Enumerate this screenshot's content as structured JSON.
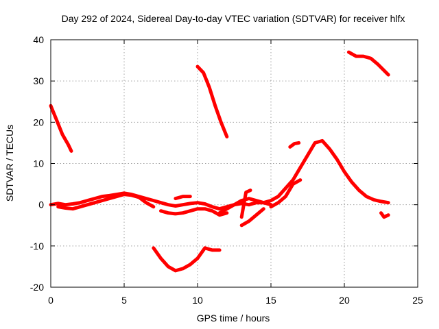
{
  "chart_data": {
    "type": "scatter",
    "title": "Day 292 of 2024, Sidereal Day-to-day VTEC variation (SDTVAR) for receiver hlfx",
    "xlabel": "GPS time / hours",
    "ylabel": "SDTVAR / TECUs",
    "xlim": [
      0,
      25
    ],
    "ylim": [
      -20,
      40
    ],
    "xticks": [
      0,
      5,
      10,
      15,
      20,
      25
    ],
    "yticks": [
      -20,
      -10,
      0,
      10,
      20,
      30,
      40
    ],
    "grid": true,
    "color": "#ff0000",
    "series": [
      {
        "name": "s1",
        "x": [
          0,
          0.4,
          0.8,
          1.2,
          1.4
        ],
        "y": [
          24,
          20.5,
          17,
          14.5,
          13
        ]
      },
      {
        "name": "s2",
        "x": [
          0,
          0.5,
          1,
          1.5,
          2,
          2.5,
          3,
          3.5,
          4,
          4.5,
          5,
          5.5,
          6,
          6.5,
          7,
          7.5,
          8,
          8.5,
          9,
          9.5,
          10,
          10.5,
          11,
          11.5,
          12,
          12.5,
          13,
          13.5,
          14,
          14.5,
          15,
          15.5,
          16,
          16.5,
          17,
          17.5,
          18,
          18.5,
          19,
          19.5,
          20,
          20.5,
          21,
          21.5,
          22,
          22.5,
          23
        ],
        "y": [
          0,
          0.3,
          0,
          0.2,
          0.5,
          1,
          1.5,
          2,
          2.2,
          2.5,
          2.8,
          2.5,
          2,
          1.5,
          1,
          0.5,
          0,
          -0.3,
          0,
          0.3,
          0.5,
          0.2,
          -0.5,
          -1,
          -0.5,
          0,
          0.3,
          0,
          0.5,
          0.5,
          1,
          2,
          4,
          6,
          9,
          12,
          15,
          15.5,
          13.5,
          11,
          8,
          5.5,
          3.5,
          2,
          1.2,
          0.8,
          0.5
        ]
      },
      {
        "name": "s3",
        "x": [
          0.5,
          1,
          1.5,
          2,
          2.5,
          3,
          3.5,
          4,
          4.5,
          5,
          5.5,
          6,
          6.5,
          7
        ],
        "y": [
          -0.5,
          -0.8,
          -1,
          -0.5,
          0,
          0.5,
          1,
          1.5,
          2,
          2.5,
          2.3,
          1.8,
          0.5,
          -0.5
        ]
      },
      {
        "name": "s4",
        "x": [
          7.5,
          8,
          8.5,
          9,
          9.5,
          10,
          10.5,
          11,
          11.5,
          12
        ],
        "y": [
          -1.5,
          -2,
          -2.2,
          -2,
          -1.5,
          -1,
          -1,
          -1.5,
          -2.5,
          -2
        ]
      },
      {
        "name": "s5",
        "x": [
          8.5,
          9,
          9.5
        ],
        "y": [
          1.5,
          2,
          2
        ]
      },
      {
        "name": "s6",
        "x": [
          11.5,
          12,
          12.5,
          13,
          13.5,
          14,
          14.5,
          15
        ],
        "y": [
          -2,
          -1,
          0,
          1,
          1.5,
          1,
          0.5,
          0
        ]
      },
      {
        "name": "s7",
        "x": [
          13,
          13.3,
          13.6
        ],
        "y": [
          -3,
          3,
          3.5
        ]
      },
      {
        "name": "s8",
        "x": [
          13,
          13.5,
          14,
          14.5
        ],
        "y": [
          -5,
          -4,
          -2.5,
          -1
        ]
      },
      {
        "name": "s9",
        "x": [
          15,
          15.5,
          16,
          16.5,
          17
        ],
        "y": [
          -0.5,
          0.5,
          2,
          5,
          6
        ]
      },
      {
        "name": "s10",
        "x": [
          16.3,
          16.6,
          16.9
        ],
        "y": [
          14,
          14.8,
          15
        ]
      },
      {
        "name": "s11",
        "x": [
          22.5,
          22.7,
          23
        ],
        "y": [
          -2,
          -3,
          -2.5
        ]
      },
      {
        "name": "s12",
        "x": [
          10,
          10.4,
          10.8,
          11.2,
          11.6,
          12
        ],
        "y": [
          33.5,
          32,
          28.5,
          24,
          20,
          16.5
        ]
      },
      {
        "name": "s13",
        "x": [
          7,
          7.5,
          8,
          8.5,
          9,
          9.5,
          10,
          10.5,
          11,
          11.5
        ],
        "y": [
          -10.5,
          -13,
          -15,
          -16,
          -15.5,
          -14.5,
          -13,
          -10.5,
          -11,
          -11
        ]
      },
      {
        "name": "s14",
        "x": [
          20.3,
          20.8,
          21.3,
          21.8,
          22.3,
          23
        ],
        "y": [
          37,
          36,
          36,
          35.5,
          34,
          31.5
        ]
      }
    ]
  }
}
